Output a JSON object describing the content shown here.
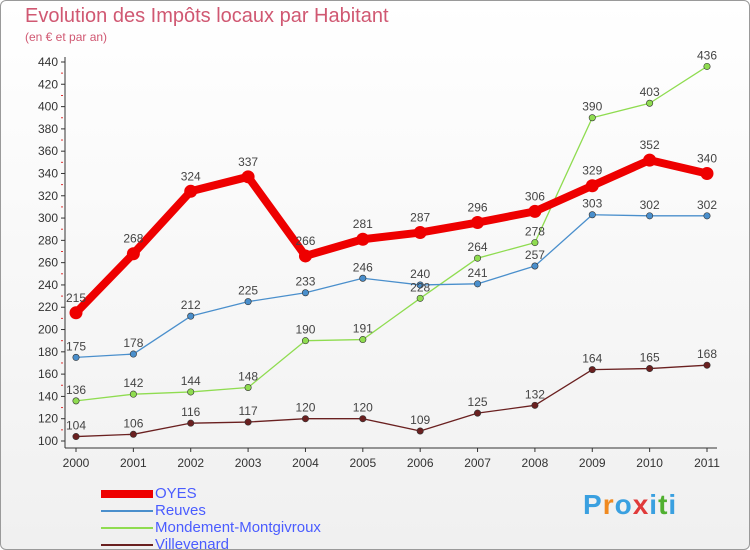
{
  "chart_data": {
    "type": "line",
    "title": "Evolution des Impôts locaux par Habitant",
    "subtitle": "(en € et par an)",
    "x": [
      "2000",
      "2001",
      "2002",
      "2003",
      "2004",
      "2005",
      "2006",
      "2007",
      "2008",
      "2009",
      "2010",
      "2011"
    ],
    "ylim": [
      100,
      440
    ],
    "yticks": [
      100,
      120,
      140,
      160,
      180,
      200,
      220,
      240,
      260,
      280,
      300,
      320,
      340,
      360,
      380,
      400,
      420,
      440
    ],
    "grid": false,
    "legend_position": "bottom-left",
    "series": [
      {
        "name": "OYES",
        "color": "#ee0000",
        "values": [
          215,
          268,
          324,
          337,
          266,
          281,
          287,
          296,
          306,
          329,
          352,
          340
        ]
      },
      {
        "name": "Reuves",
        "color": "#4a8fcc",
        "values": [
          175,
          178,
          212,
          225,
          233,
          246,
          240,
          241,
          257,
          303,
          302,
          302
        ]
      },
      {
        "name": "Mondement-Montgivroux",
        "color": "#8fdc50",
        "values": [
          136,
          142,
          144,
          148,
          190,
          191,
          228,
          264,
          278,
          390,
          403,
          436
        ]
      },
      {
        "name": "Villevenard",
        "color": "#6a2020",
        "values": [
          104,
          106,
          116,
          117,
          120,
          120,
          109,
          125,
          132,
          164,
          165,
          168
        ]
      }
    ]
  },
  "logo": {
    "text": "Proxiti",
    "letters": [
      "P",
      "r",
      "o",
      "x",
      "i",
      "t",
      "i"
    ],
    "colors": [
      "#3aa0e0",
      "#f08a20",
      "#3aa0e0",
      "#e03a3a",
      "#3aa0e0",
      "#50b030",
      "#3aa0e0"
    ]
  }
}
